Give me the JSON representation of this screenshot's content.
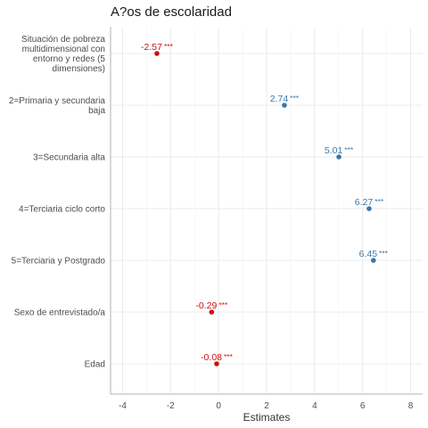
{
  "chart_data": {
    "type": "scatter",
    "title": "A?os de escolaridad",
    "xlabel": "Estimates",
    "xlim": [
      -4.5,
      8.5
    ],
    "xticks": [
      -4,
      -2,
      0,
      2,
      4,
      6,
      8
    ],
    "grid": true,
    "colors": {
      "positive": "#3a77aa",
      "negative": "#cc1111"
    },
    "terms": [
      {
        "label": [
          "Situación de pobreza",
          "multidimensional con",
          "entorno y redes (5",
          "dimensiones)"
        ],
        "estimate": -2.57,
        "display": "-2.57",
        "sig": "***",
        "sign": "negative"
      },
      {
        "label": [
          "2=Primaria y secundaria",
          "baja"
        ],
        "estimate": 2.74,
        "display": "2.74",
        "sig": "***",
        "sign": "positive"
      },
      {
        "label": [
          "3=Secundaria alta"
        ],
        "estimate": 5.01,
        "display": "5.01",
        "sig": "***",
        "sign": "positive"
      },
      {
        "label": [
          "4=Terciaria ciclo corto"
        ],
        "estimate": 6.27,
        "display": "6.27",
        "sig": "***",
        "sign": "positive"
      },
      {
        "label": [
          "5=Terciaria y Postgrado"
        ],
        "estimate": 6.45,
        "display": "6.45",
        "sig": "***",
        "sign": "positive"
      },
      {
        "label": [
          "Sexo de entrevistado/a"
        ],
        "estimate": -0.29,
        "display": "-0.29",
        "sig": "***",
        "sign": "negative"
      },
      {
        "label": [
          "Edad"
        ],
        "estimate": -0.08,
        "display": "-0.08",
        "sig": "***",
        "sign": "negative"
      }
    ]
  }
}
